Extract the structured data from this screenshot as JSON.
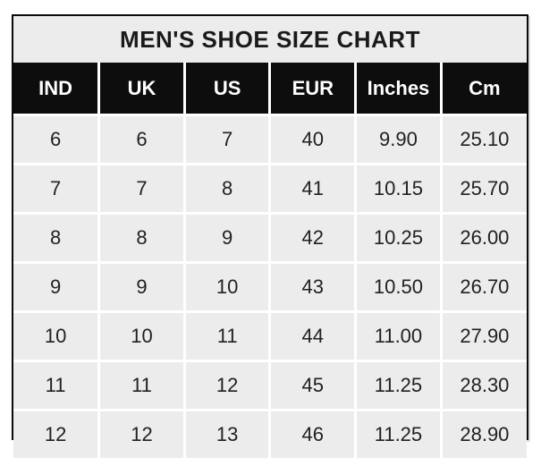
{
  "title": "MEN'S SHOE SIZE CHART",
  "colors": {
    "page_bg": "#ffffff",
    "title_bg": "#ececec",
    "header_bg": "#0d0d0d",
    "header_text": "#ffffff",
    "cell_bg": "#ececec",
    "grid": "#ffffff",
    "outer_border": "#0a0a0a",
    "body_text": "#212121"
  },
  "table": {
    "columns": [
      "IND",
      "UK",
      "US",
      "EUR",
      "Inches",
      "Cm"
    ],
    "rows": [
      [
        "6",
        "6",
        "7",
        "40",
        "9.90",
        "25.10"
      ],
      [
        "7",
        "7",
        "8",
        "41",
        "10.15",
        "25.70"
      ],
      [
        "8",
        "8",
        "9",
        "42",
        "10.25",
        "26.00"
      ],
      [
        "9",
        "9",
        "10",
        "43",
        "10.50",
        "26.70"
      ],
      [
        "10",
        "10",
        "11",
        "44",
        "11.00",
        "27.90"
      ],
      [
        "11",
        "11",
        "12",
        "45",
        "11.25",
        "28.30"
      ],
      [
        "12",
        "12",
        "13",
        "46",
        "11.25",
        "28.90"
      ]
    ]
  },
  "chart_data": {
    "type": "table",
    "title": "MEN'S SHOE SIZE CHART",
    "columns": [
      "IND",
      "UK",
      "US",
      "EUR",
      "Inches",
      "Cm"
    ],
    "rows": [
      [
        6,
        6,
        7,
        40,
        9.9,
        25.1
      ],
      [
        7,
        7,
        8,
        41,
        10.15,
        25.7
      ],
      [
        8,
        8,
        9,
        42,
        10.25,
        26.0
      ],
      [
        9,
        9,
        10,
        43,
        10.5,
        26.7
      ],
      [
        10,
        10,
        11,
        44,
        11.0,
        27.9
      ],
      [
        11,
        11,
        12,
        45,
        11.25,
        28.3
      ],
      [
        12,
        12,
        13,
        46,
        11.25,
        28.9
      ]
    ]
  }
}
